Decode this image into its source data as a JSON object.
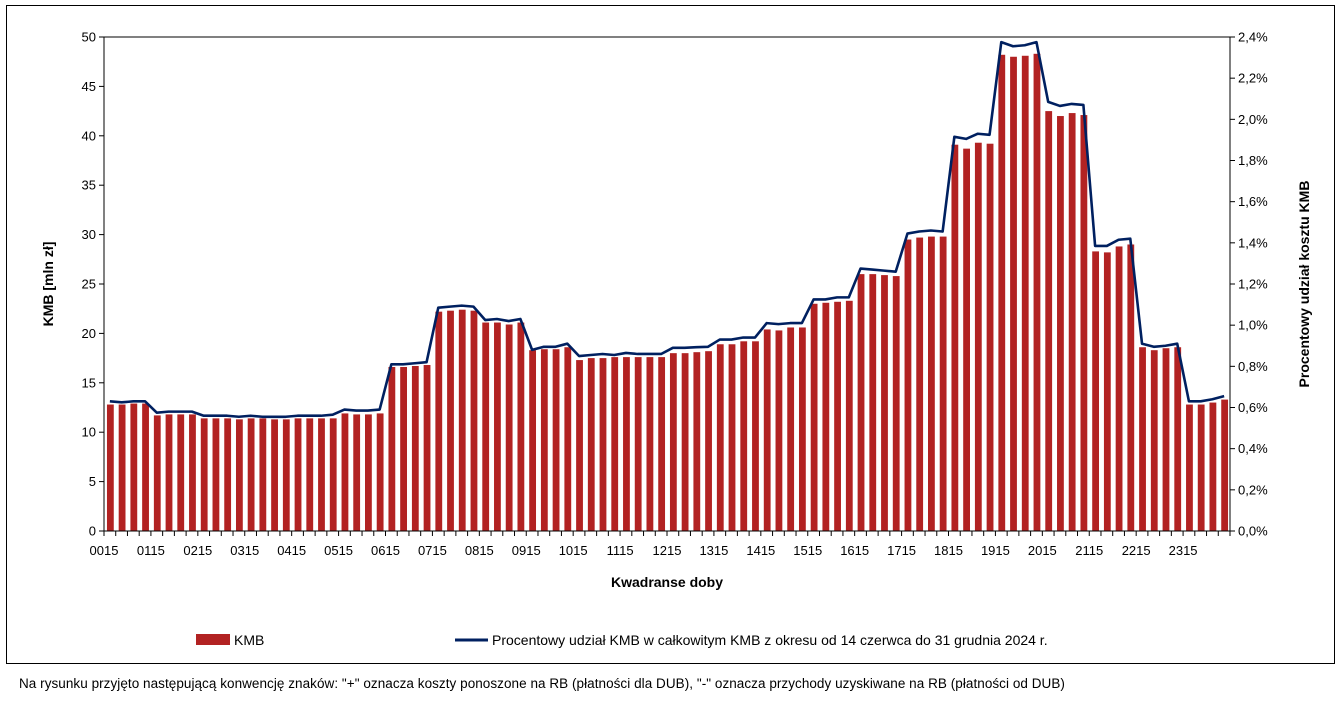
{
  "chart_data": {
    "type": "bar",
    "xlabel": "Kwadranse doby",
    "ylabel": "KMB [mln zł]",
    "y2label": "Procentowy udział kosztu KMB",
    "ylim": [
      0,
      50
    ],
    "y2lim": [
      0,
      2.4
    ],
    "yticks": [
      "0",
      "5",
      "10",
      "15",
      "20",
      "25",
      "30",
      "35",
      "40",
      "45",
      "50"
    ],
    "y2ticks": [
      "0,0%",
      "0,2%",
      "0,4%",
      "0,6%",
      "0,8%",
      "1,0%",
      "1,2%",
      "1,4%",
      "1,6%",
      "1,8%",
      "2,0%",
      "2,2%",
      "2,4%"
    ],
    "xtick_labels": [
      "0015",
      "0115",
      "0215",
      "0315",
      "0415",
      "0515",
      "0615",
      "0715",
      "0815",
      "0915",
      "1015",
      "1115",
      "1215",
      "1315",
      "1415",
      "1515",
      "1615",
      "1715",
      "1815",
      "1915",
      "2015",
      "2115",
      "2215",
      "2315"
    ],
    "grid": false,
    "legend_position": "bottom",
    "series": [
      {
        "name": "KMB",
        "type": "bar",
        "color": "#b22222",
        "values": [
          12.8,
          12.8,
          12.9,
          12.9,
          11.7,
          11.8,
          11.8,
          11.8,
          11.4,
          11.4,
          11.4,
          11.3,
          11.4,
          11.4,
          11.3,
          11.3,
          11.4,
          11.4,
          11.4,
          11.4,
          11.9,
          11.8,
          11.8,
          11.9,
          16.6,
          16.6,
          16.7,
          16.8,
          22.2,
          22.3,
          22.4,
          22.3,
          21.1,
          21.1,
          20.9,
          21.1,
          18.3,
          18.4,
          18.4,
          18.6,
          17.3,
          17.5,
          17.5,
          17.6,
          17.6,
          17.6,
          17.6,
          17.6,
          18.0,
          18.0,
          18.1,
          18.2,
          18.9,
          18.9,
          19.2,
          19.2,
          20.4,
          20.3,
          20.6,
          20.6,
          23.0,
          23.1,
          23.2,
          23.3,
          26.0,
          26.0,
          25.9,
          25.8,
          29.5,
          29.7,
          29.8,
          29.8,
          39.1,
          38.7,
          39.3,
          39.2,
          48.2,
          48.0,
          48.1,
          48.3,
          42.5,
          42.0,
          42.3,
          42.1,
          28.3,
          28.2,
          28.8,
          29.0,
          18.6,
          18.3,
          18.5,
          18.6,
          12.8,
          12.8,
          13.0,
          13.3
        ]
      },
      {
        "name": "Procentowy udział KMB w całkowitym KMB z okresu od 14 czerwca do 31 grudnia 2024 r.",
        "type": "line",
        "axis": "right",
        "color": "#002060",
        "values": [
          0.63,
          0.625,
          0.63,
          0.63,
          0.575,
          0.58,
          0.58,
          0.58,
          0.56,
          0.56,
          0.56,
          0.555,
          0.56,
          0.555,
          0.555,
          0.555,
          0.56,
          0.56,
          0.56,
          0.565,
          0.59,
          0.585,
          0.585,
          0.59,
          0.81,
          0.81,
          0.815,
          0.82,
          1.085,
          1.09,
          1.095,
          1.09,
          1.025,
          1.03,
          1.02,
          1.03,
          0.88,
          0.895,
          0.895,
          0.91,
          0.85,
          0.855,
          0.86,
          0.855,
          0.865,
          0.86,
          0.86,
          0.86,
          0.89,
          0.89,
          0.893,
          0.895,
          0.93,
          0.93,
          0.94,
          0.94,
          1.01,
          1.005,
          1.01,
          1.01,
          1.125,
          1.125,
          1.135,
          1.135,
          1.275,
          1.27,
          1.265,
          1.26,
          1.445,
          1.455,
          1.46,
          1.455,
          1.915,
          1.905,
          1.93,
          1.925,
          2.375,
          2.355,
          2.36,
          2.375,
          2.085,
          2.065,
          2.075,
          2.07,
          1.385,
          1.385,
          1.415,
          1.42,
          0.91,
          0.895,
          0.9,
          0.91,
          0.63,
          0.63,
          0.64,
          0.655
        ]
      }
    ]
  },
  "footnote": "Na rysunku przyjęto następującą konwencję znaków: \"+\" oznacza koszty ponoszone na RB (płatności dla DUB), \"-\" oznacza przychody uzyskiwane na RB (płatności od DUB)"
}
